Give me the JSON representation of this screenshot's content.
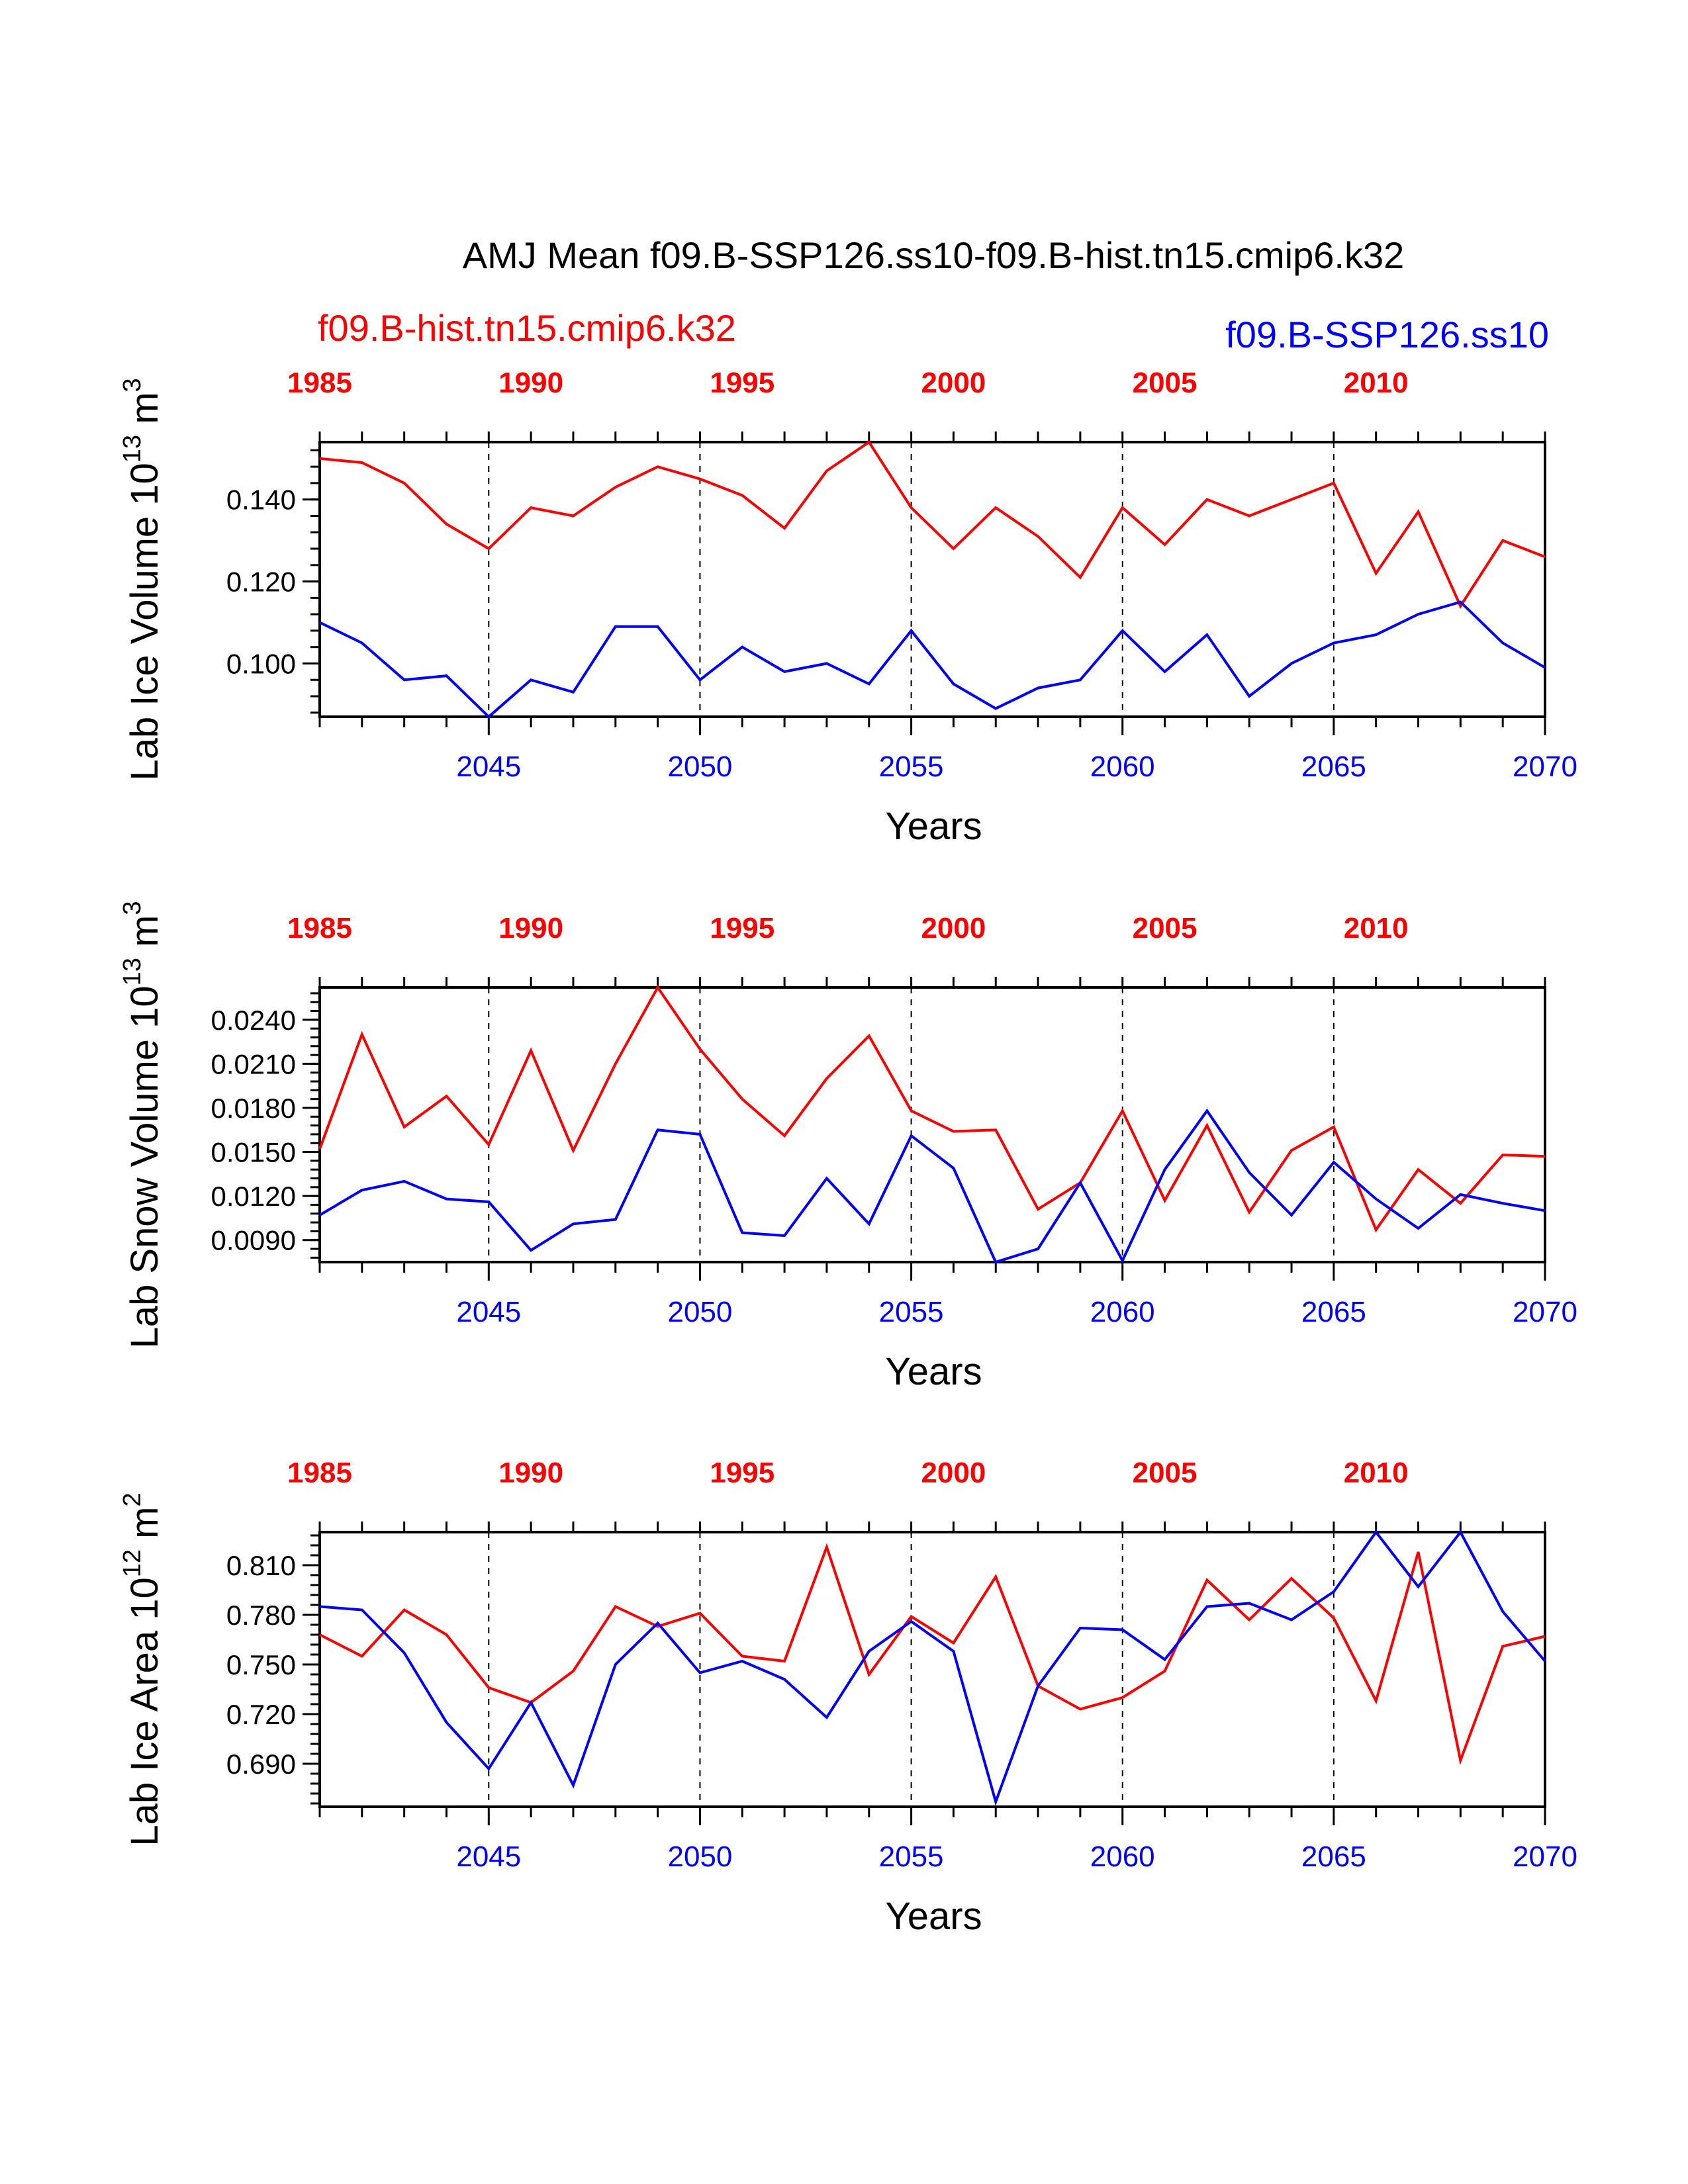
{
  "title": "AMJ Mean f09.B-SSP126.ss10-f09.B-hist.tn15.cmip6.k32",
  "legend": {
    "hist_label": "f09.B-hist.tn15.cmip6.k32",
    "ssp_label": "f09.B-SSP126.ss10"
  },
  "colors": {
    "hist": "#ff0000",
    "ssp": "#0000ff",
    "axis": "#000000"
  },
  "chart_data": [
    {
      "type": "line",
      "ylabel": "Lab Ice Volume 10^13 m^3",
      "ylabel_main": "Lab Ice Volume 10",
      "ylabel_exp": "13",
      "ylabel_unit": " m",
      "ylabel_unit_exp": "3",
      "xlabel": "Years",
      "ylim": [
        0.087,
        0.154
      ],
      "y_ticks": [
        "0.100",
        "0.120",
        "0.140"
      ],
      "y_tick_values": [
        0.1,
        0.12,
        0.14
      ],
      "xlim_bottom": [
        2041,
        2070
      ],
      "bottom_ticks": [
        "2045",
        "2050",
        "2055",
        "2060",
        "2065",
        "2070"
      ],
      "top_ticks": [
        "1985",
        "1990",
        "1995",
        "2000",
        "2005",
        "2010"
      ],
      "series": [
        {
          "name": "f09.B-hist.tn15.cmip6.k32",
          "x": [
            1985,
            1986,
            1987,
            1988,
            1989,
            1990,
            1991,
            1992,
            1993,
            1994,
            1995,
            1996,
            1997,
            1998,
            1999,
            2000,
            2001,
            2002,
            2003,
            2004,
            2005,
            2006,
            2007,
            2008,
            2009,
            2010,
            2011,
            2012,
            2013,
            2014
          ],
          "values": [
            0.15,
            0.149,
            0.144,
            0.134,
            0.128,
            0.138,
            0.136,
            0.143,
            0.148,
            0.145,
            0.141,
            0.133,
            0.147,
            0.154,
            0.138,
            0.128,
            0.138,
            0.131,
            0.121,
            0.138,
            0.129,
            0.14,
            0.136,
            0.14,
            0.144,
            0.122,
            0.137,
            0.114,
            0.13,
            0.126
          ]
        },
        {
          "name": "f09.B-SSP126.ss10",
          "x": [
            2041,
            2042,
            2043,
            2044,
            2045,
            2046,
            2047,
            2048,
            2049,
            2050,
            2051,
            2052,
            2053,
            2054,
            2055,
            2056,
            2057,
            2058,
            2059,
            2060,
            2061,
            2062,
            2063,
            2064,
            2065,
            2066,
            2067,
            2068,
            2069,
            2070
          ],
          "values": [
            0.11,
            0.105,
            0.096,
            0.097,
            0.087,
            0.096,
            0.093,
            0.109,
            0.109,
            0.096,
            0.104,
            0.098,
            0.1,
            0.095,
            0.108,
            0.095,
            0.089,
            0.094,
            0.096,
            0.108,
            0.098,
            0.107,
            0.092,
            0.1,
            0.105,
            0.107,
            0.112,
            0.115,
            0.105,
            0.099
          ]
        }
      ]
    },
    {
      "type": "line",
      "ylabel": "Lab Snow Volume 10^13 m^3",
      "ylabel_main": "Lab Snow Volume 10",
      "ylabel_exp": "13",
      "ylabel_unit": " m",
      "ylabel_unit_exp": "3",
      "xlabel": "Years",
      "ylim": [
        0.0075,
        0.0262
      ],
      "y_ticks": [
        "0.0090",
        "0.0120",
        "0.0150",
        "0.0180",
        "0.0210",
        "0.0240"
      ],
      "y_tick_values": [
        0.009,
        0.012,
        0.015,
        0.018,
        0.021,
        0.024
      ],
      "xlim_bottom": [
        2041,
        2070
      ],
      "bottom_ticks": [
        "2045",
        "2050",
        "2055",
        "2060",
        "2065",
        "2070"
      ],
      "top_ticks": [
        "1985",
        "1990",
        "1995",
        "2000",
        "2005",
        "2010"
      ],
      "series": [
        {
          "name": "f09.B-hist.tn15.cmip6.k32",
          "x": [
            1985,
            1986,
            1987,
            1988,
            1989,
            1990,
            1991,
            1992,
            1993,
            1994,
            1995,
            1996,
            1997,
            1998,
            1999,
            2000,
            2001,
            2002,
            2003,
            2004,
            2005,
            2006,
            2007,
            2008,
            2009,
            2010,
            2011,
            2012,
            2013,
            2014
          ],
          "values": [
            0.0152,
            0.023,
            0.0167,
            0.0188,
            0.0155,
            0.0219,
            0.0151,
            0.021,
            0.0262,
            0.022,
            0.0186,
            0.0161,
            0.02,
            0.0229,
            0.0178,
            0.0164,
            0.0165,
            0.0111,
            0.0129,
            0.0178,
            0.0117,
            0.0168,
            0.0109,
            0.0151,
            0.0167,
            0.0097,
            0.0138,
            0.0115,
            0.0148,
            0.0147
          ]
        },
        {
          "name": "f09.B-SSP126.ss10",
          "x": [
            2041,
            2042,
            2043,
            2044,
            2045,
            2046,
            2047,
            2048,
            2049,
            2050,
            2051,
            2052,
            2053,
            2054,
            2055,
            2056,
            2057,
            2058,
            2059,
            2060,
            2061,
            2062,
            2063,
            2064,
            2065,
            2066,
            2067,
            2068,
            2069,
            2070
          ],
          "values": [
            0.0107,
            0.0124,
            0.013,
            0.0118,
            0.0116,
            0.0083,
            0.0101,
            0.0104,
            0.0165,
            0.0162,
            0.0095,
            0.0093,
            0.0132,
            0.0101,
            0.0161,
            0.0139,
            0.0075,
            0.0084,
            0.0129,
            0.0076,
            0.0138,
            0.0178,
            0.0136,
            0.0107,
            0.0143,
            0.0118,
            0.0098,
            0.0121,
            0.0115,
            0.011
          ]
        }
      ]
    },
    {
      "type": "line",
      "ylabel": "Lab Ice Area 10^12 m^2",
      "ylabel_main": "Lab Ice Area 10",
      "ylabel_exp": "12",
      "ylabel_unit": " m",
      "ylabel_unit_exp": "2",
      "xlabel": "Years",
      "ylim": [
        0.664,
        0.83
      ],
      "y_ticks": [
        "0.690",
        "0.720",
        "0.750",
        "0.780",
        "0.810"
      ],
      "y_tick_values": [
        0.69,
        0.72,
        0.75,
        0.78,
        0.81
      ],
      "xlim_bottom": [
        2041,
        2070
      ],
      "bottom_ticks": [
        "2045",
        "2050",
        "2055",
        "2060",
        "2065",
        "2070"
      ],
      "top_ticks": [
        "1985",
        "1990",
        "1995",
        "2000",
        "2005",
        "2010"
      ],
      "series": [
        {
          "name": "f09.B-hist.tn15.cmip6.k32",
          "x": [
            1985,
            1986,
            1987,
            1988,
            1989,
            1990,
            1991,
            1992,
            1993,
            1994,
            1995,
            1996,
            1997,
            1998,
            1999,
            2000,
            2001,
            2002,
            2003,
            2004,
            2005,
            2006,
            2007,
            2008,
            2009,
            2010,
            2011,
            2012,
            2013,
            2014
          ],
          "values": [
            0.768,
            0.755,
            0.783,
            0.768,
            0.736,
            0.727,
            0.746,
            0.785,
            0.773,
            0.781,
            0.755,
            0.752,
            0.821,
            0.744,
            0.779,
            0.763,
            0.803,
            0.737,
            0.723,
            0.73,
            0.746,
            0.801,
            0.777,
            0.802,
            0.778,
            0.728,
            0.818,
            0.692,
            0.761,
            0.767
          ]
        },
        {
          "name": "f09.B-SSP126.ss10",
          "x": [
            2041,
            2042,
            2043,
            2044,
            2045,
            2046,
            2047,
            2048,
            2049,
            2050,
            2051,
            2052,
            2053,
            2054,
            2055,
            2056,
            2057,
            2058,
            2059,
            2060,
            2061,
            2062,
            2063,
            2064,
            2065,
            2066,
            2067,
            2068,
            2069,
            2070
          ],
          "values": [
            0.785,
            0.783,
            0.757,
            0.715,
            0.687,
            0.727,
            0.677,
            0.75,
            0.775,
            0.745,
            0.752,
            0.741,
            0.718,
            0.758,
            0.776,
            0.758,
            0.667,
            0.737,
            0.772,
            0.771,
            0.753,
            0.785,
            0.787,
            0.777,
            0.794,
            0.83,
            0.797,
            0.83,
            0.782,
            0.752
          ]
        }
      ]
    }
  ]
}
